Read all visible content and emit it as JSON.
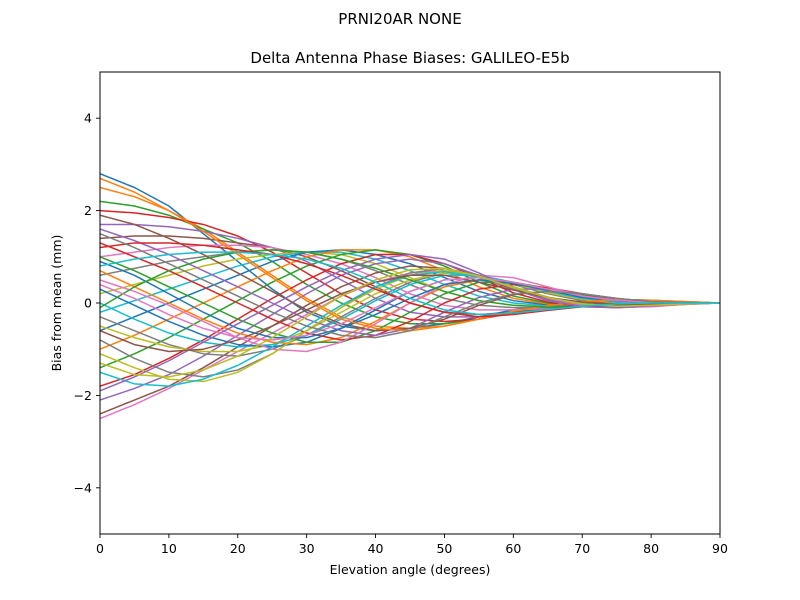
{
  "figure": {
    "suptitle": "PRNI20AR        NONE"
  },
  "chart_data": {
    "type": "line",
    "title": "Delta Antenna Phase Biases: GALILEO-E5b",
    "xlabel": "Elevation angle (degrees)",
    "ylabel": "Bias from mean (mm)",
    "xlim": [
      0,
      90
    ],
    "ylim": [
      -5,
      5
    ],
    "xticks": [
      0,
      10,
      20,
      30,
      40,
      50,
      60,
      70,
      80,
      90
    ],
    "yticks": [
      -4,
      -2,
      0,
      2,
      4
    ],
    "xtick_labels": [
      "0",
      "10",
      "20",
      "30",
      "40",
      "50",
      "60",
      "70",
      "80",
      "90"
    ],
    "ytick_labels": [
      "−4",
      "−2",
      "0",
      "2",
      "4"
    ],
    "grid": false,
    "legend": "none",
    "x": [
      0,
      5,
      10,
      15,
      20,
      25,
      30,
      35,
      40,
      45,
      50,
      55,
      60,
      65,
      70,
      75,
      80,
      85,
      90
    ],
    "colors": [
      "#1f77b4",
      "#ff7f0e",
      "#2ca02c",
      "#d62728",
      "#9467bd",
      "#8c564b",
      "#e377c2",
      "#7f7f7f",
      "#bcbd22",
      "#17becf"
    ],
    "series": [
      {
        "values": [
          2.8,
          2.5,
          2.1,
          1.5,
          0.9,
          0.3,
          -0.2,
          -0.5,
          -0.6,
          -0.55,
          -0.45,
          -0.3,
          -0.15,
          -0.05,
          0.05,
          0.08,
          0.06,
          0.03,
          0.0
        ]
      },
      {
        "values": [
          2.5,
          2.3,
          2.0,
          1.6,
          1.1,
          0.6,
          0.1,
          -0.3,
          -0.5,
          -0.55,
          -0.5,
          -0.35,
          -0.2,
          -0.08,
          0.02,
          0.06,
          0.05,
          0.02,
          0.0
        ]
      },
      {
        "values": [
          2.2,
          2.1,
          1.9,
          1.6,
          1.3,
          0.9,
          0.4,
          0.0,
          -0.3,
          -0.45,
          -0.45,
          -0.35,
          -0.2,
          -0.1,
          -0.02,
          0.03,
          0.04,
          0.02,
          0.0
        ]
      },
      {
        "values": [
          2.0,
          1.95,
          1.85,
          1.7,
          1.45,
          1.1,
          0.65,
          0.2,
          -0.15,
          -0.35,
          -0.4,
          -0.35,
          -0.22,
          -0.12,
          -0.04,
          0.01,
          0.03,
          0.02,
          0.0
        ]
      },
      {
        "values": [
          1.7,
          1.7,
          1.65,
          1.55,
          1.4,
          1.2,
          0.9,
          0.5,
          0.1,
          -0.2,
          -0.3,
          -0.3,
          -0.22,
          -0.13,
          -0.06,
          -0.01,
          0.02,
          0.01,
          0.0
        ]
      },
      {
        "values": [
          1.4,
          1.45,
          1.45,
          1.4,
          1.3,
          1.2,
          1.0,
          0.7,
          0.35,
          0.0,
          -0.2,
          -0.25,
          -0.2,
          -0.13,
          -0.07,
          -0.02,
          0.01,
          0.01,
          0.0
        ]
      },
      {
        "values": [
          1.0,
          1.1,
          1.2,
          1.25,
          1.25,
          1.2,
          1.05,
          0.85,
          0.55,
          0.2,
          -0.05,
          -0.15,
          -0.15,
          -0.12,
          -0.07,
          -0.03,
          0.0,
          0.01,
          0.0
        ]
      },
      {
        "values": [
          0.6,
          0.75,
          0.9,
          1.0,
          1.1,
          1.15,
          1.1,
          0.95,
          0.7,
          0.4,
          0.1,
          -0.05,
          -0.1,
          -0.1,
          -0.07,
          -0.03,
          0.0,
          0.0,
          0.0
        ]
      },
      {
        "values": [
          0.2,
          0.4,
          0.6,
          0.8,
          0.95,
          1.05,
          1.1,
          1.05,
          0.85,
          0.55,
          0.25,
          0.05,
          -0.05,
          -0.08,
          -0.07,
          -0.04,
          -0.01,
          0.0,
          0.0
        ]
      },
      {
        "values": [
          -0.2,
          0.05,
          0.3,
          0.55,
          0.8,
          1.0,
          1.1,
          1.1,
          0.95,
          0.7,
          0.4,
          0.15,
          0.0,
          -0.06,
          -0.07,
          -0.05,
          -0.02,
          0.0,
          0.0
        ]
      },
      {
        "values": [
          -0.6,
          -0.3,
          0.0,
          0.3,
          0.6,
          0.9,
          1.1,
          1.15,
          1.05,
          0.85,
          0.55,
          0.25,
          0.05,
          -0.04,
          -0.07,
          -0.05,
          -0.02,
          0.0,
          0.0
        ]
      },
      {
        "values": [
          -1.0,
          -0.7,
          -0.35,
          0.0,
          0.35,
          0.7,
          1.0,
          1.15,
          1.15,
          1.0,
          0.7,
          0.35,
          0.1,
          -0.02,
          -0.07,
          -0.06,
          -0.03,
          -0.01,
          0.0
        ]
      },
      {
        "values": [
          -1.4,
          -1.1,
          -0.75,
          -0.35,
          0.05,
          0.45,
          0.8,
          1.05,
          1.15,
          1.05,
          0.8,
          0.45,
          0.15,
          0.0,
          -0.07,
          -0.07,
          -0.04,
          -0.01,
          0.0
        ]
      },
      {
        "values": [
          -1.8,
          -1.55,
          -1.2,
          -0.8,
          -0.35,
          0.1,
          0.5,
          0.85,
          1.05,
          1.05,
          0.85,
          0.55,
          0.22,
          0.02,
          -0.08,
          -0.08,
          -0.05,
          -0.02,
          0.0
        ]
      },
      {
        "values": [
          -2.1,
          -1.85,
          -1.55,
          -1.15,
          -0.7,
          -0.25,
          0.2,
          0.6,
          0.85,
          0.95,
          0.85,
          0.6,
          0.3,
          0.05,
          -0.08,
          -0.1,
          -0.06,
          -0.02,
          0.0
        ]
      },
      {
        "values": [
          -2.4,
          -2.1,
          -1.8,
          -1.4,
          -0.95,
          -0.5,
          -0.05,
          0.35,
          0.65,
          0.8,
          0.75,
          0.55,
          0.3,
          0.08,
          -0.07,
          -0.1,
          -0.07,
          -0.03,
          0.0
        ]
      },
      {
        "values": [
          -2.5,
          -2.2,
          -1.85,
          -1.45,
          -1.05,
          -0.65,
          -0.25,
          0.15,
          0.45,
          0.65,
          0.7,
          0.55,
          0.32,
          0.1,
          -0.05,
          -0.1,
          -0.08,
          -0.03,
          0.0
        ]
      },
      {
        "values": [
          -0.3,
          -0.6,
          -0.9,
          -1.1,
          -1.15,
          -1.0,
          -0.7,
          -0.3,
          0.1,
          0.45,
          0.65,
          0.6,
          0.4,
          0.2,
          0.05,
          -0.02,
          -0.04,
          -0.02,
          0.0
        ]
      },
      {
        "values": [
          -0.5,
          -0.75,
          -0.95,
          -1.05,
          -1.05,
          -0.9,
          -0.6,
          -0.2,
          0.2,
          0.5,
          0.65,
          0.6,
          0.42,
          0.22,
          0.08,
          0.0,
          -0.03,
          -0.02,
          0.0
        ]
      },
      {
        "values": [
          0.0,
          -0.35,
          -0.65,
          -0.85,
          -0.95,
          -0.9,
          -0.7,
          -0.35,
          0.05,
          0.4,
          0.6,
          0.6,
          0.45,
          0.25,
          0.1,
          0.02,
          -0.02,
          -0.01,
          0.0
        ]
      },
      {
        "values": [
          0.3,
          -0.05,
          -0.4,
          -0.7,
          -0.9,
          -0.95,
          -0.85,
          -0.55,
          -0.15,
          0.25,
          0.5,
          0.55,
          0.45,
          0.28,
          0.12,
          0.04,
          -0.01,
          -0.01,
          0.0
        ]
      },
      {
        "values": [
          0.7,
          0.35,
          0.0,
          -0.35,
          -0.65,
          -0.85,
          -0.9,
          -0.75,
          -0.4,
          0.0,
          0.35,
          0.5,
          0.45,
          0.3,
          0.15,
          0.05,
          0.0,
          -0.01,
          0.0
        ]
      },
      {
        "values": [
          1.0,
          0.7,
          0.35,
          0.0,
          -0.35,
          -0.65,
          -0.85,
          -0.85,
          -0.6,
          -0.2,
          0.2,
          0.45,
          0.45,
          0.32,
          0.18,
          0.07,
          0.01,
          0.0,
          0.0
        ]
      },
      {
        "values": [
          1.3,
          1.0,
          0.7,
          0.35,
          0.0,
          -0.35,
          -0.65,
          -0.8,
          -0.7,
          -0.4,
          0.0,
          0.3,
          0.4,
          0.33,
          0.2,
          0.08,
          0.02,
          0.0,
          0.0
        ]
      },
      {
        "values": [
          1.6,
          1.35,
          1.05,
          0.7,
          0.35,
          0.0,
          -0.35,
          -0.6,
          -0.7,
          -0.55,
          -0.2,
          0.12,
          0.3,
          0.3,
          0.2,
          0.09,
          0.03,
          0.01,
          0.0
        ]
      },
      {
        "values": [
          1.9,
          1.7,
          1.4,
          1.05,
          0.65,
          0.25,
          -0.15,
          -0.45,
          -0.6,
          -0.55,
          -0.35,
          -0.05,
          0.18,
          0.25,
          0.2,
          0.1,
          0.03,
          0.01,
          0.0
        ]
      },
      {
        "values": [
          0.5,
          0.25,
          -0.05,
          -0.4,
          -0.75,
          -1.0,
          -1.05,
          -0.85,
          -0.45,
          0.0,
          0.4,
          0.6,
          0.55,
          0.35,
          0.15,
          0.04,
          -0.01,
          -0.01,
          0.0
        ]
      },
      {
        "values": [
          -0.8,
          -1.2,
          -1.5,
          -1.6,
          -1.45,
          -1.1,
          -0.6,
          -0.1,
          0.35,
          0.65,
          0.75,
          0.6,
          0.35,
          0.12,
          -0.02,
          -0.06,
          -0.05,
          -0.02,
          0.0
        ]
      },
      {
        "values": [
          -1.1,
          -1.4,
          -1.65,
          -1.7,
          -1.5,
          -1.1,
          -0.6,
          -0.1,
          0.3,
          0.6,
          0.7,
          0.58,
          0.35,
          0.13,
          -0.02,
          -0.07,
          -0.05,
          -0.02,
          0.0
        ]
      },
      {
        "values": [
          -1.5,
          -1.75,
          -1.8,
          -1.65,
          -1.35,
          -0.95,
          -0.5,
          -0.05,
          0.35,
          0.6,
          0.68,
          0.56,
          0.33,
          0.12,
          -0.03,
          -0.07,
          -0.05,
          -0.02,
          0.0
        ]
      },
      {
        "values": [
          0.9,
          0.6,
          0.2,
          -0.2,
          -0.55,
          -0.75,
          -0.75,
          -0.55,
          -0.25,
          0.1,
          0.4,
          0.5,
          0.42,
          0.28,
          0.14,
          0.05,
          0.01,
          0.0,
          0.0
        ]
      },
      {
        "values": [
          2.7,
          2.4,
          2.0,
          1.55,
          1.05,
          0.55,
          0.05,
          -0.35,
          -0.55,
          -0.6,
          -0.5,
          -0.35,
          -0.18,
          -0.06,
          0.03,
          0.07,
          0.06,
          0.03,
          0.0
        ]
      },
      {
        "values": [
          -0.1,
          0.35,
          0.7,
          0.95,
          1.1,
          1.15,
          1.1,
          0.95,
          0.75,
          0.5,
          0.25,
          0.05,
          -0.05,
          -0.09,
          -0.08,
          -0.05,
          -0.02,
          0.0,
          0.0
        ]
      },
      {
        "values": [
          1.2,
          1.3,
          1.3,
          1.25,
          1.15,
          1.05,
          0.85,
          0.6,
          0.3,
          0.0,
          -0.2,
          -0.3,
          -0.25,
          -0.16,
          -0.08,
          -0.03,
          0.0,
          0.0,
          0.0
        ]
      },
      {
        "values": [
          -1.9,
          -1.6,
          -1.25,
          -0.85,
          -0.45,
          -0.05,
          0.35,
          0.7,
          0.95,
          1.05,
          0.95,
          0.65,
          0.3,
          0.06,
          -0.08,
          -0.1,
          -0.06,
          -0.02,
          0.0
        ]
      },
      {
        "values": [
          -0.6,
          -0.9,
          -1.05,
          -1.0,
          -0.8,
          -0.5,
          -0.15,
          0.2,
          0.45,
          0.6,
          0.6,
          0.45,
          0.28,
          0.12,
          0.02,
          -0.02,
          -0.02,
          -0.01,
          0.0
        ]
      },
      {
        "values": [
          0.4,
          0.1,
          -0.25,
          -0.55,
          -0.75,
          -0.8,
          -0.7,
          -0.45,
          -0.1,
          0.25,
          0.5,
          0.55,
          0.45,
          0.3,
          0.15,
          0.06,
          0.01,
          0.0,
          0.0
        ]
      },
      {
        "values": [
          1.5,
          1.2,
          0.85,
          0.5,
          0.15,
          -0.2,
          -0.5,
          -0.7,
          -0.75,
          -0.6,
          -0.3,
          0.0,
          0.2,
          0.25,
          0.2,
          0.1,
          0.03,
          0.01,
          0.0
        ]
      },
      {
        "values": [
          -1.3,
          -1.55,
          -1.6,
          -1.45,
          -1.15,
          -0.75,
          -0.3,
          0.15,
          0.5,
          0.72,
          0.75,
          0.58,
          0.33,
          0.12,
          -0.02,
          -0.07,
          -0.05,
          -0.02,
          0.0
        ]
      },
      {
        "values": [
          0.8,
          0.95,
          1.05,
          1.1,
          1.1,
          1.05,
          0.95,
          0.75,
          0.45,
          0.1,
          -0.15,
          -0.25,
          -0.22,
          -0.14,
          -0.07,
          -0.02,
          0.0,
          0.0,
          0.0
        ]
      }
    ]
  }
}
